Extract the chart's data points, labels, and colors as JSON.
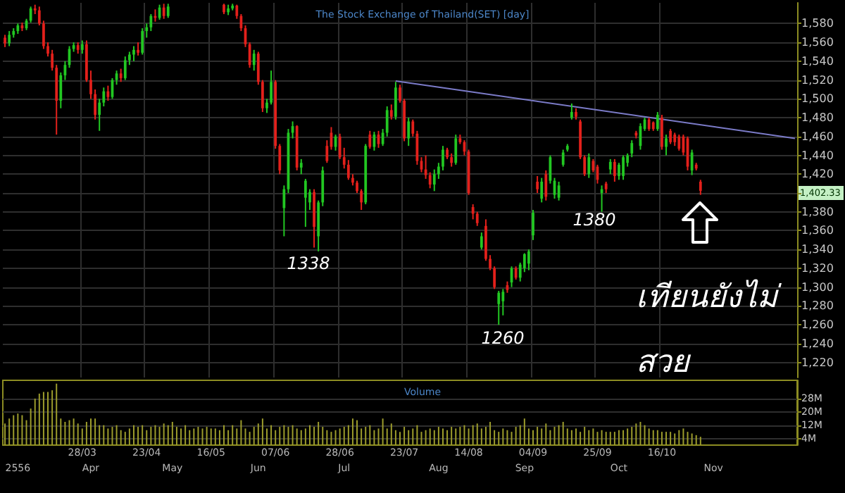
{
  "chart_data": [
    {
      "type": "candlestick",
      "title": "The Stock Exchange of Thailand(SET) [day]",
      "categories": [
        null,
        null,
        null,
        null,
        null,
        null,
        null,
        null,
        null,
        null,
        null,
        null,
        null,
        null,
        null,
        null,
        null,
        null,
        "28/03",
        null,
        null,
        null,
        null,
        null,
        null,
        null,
        null,
        null,
        null,
        null,
        null,
        null,
        null,
        "23/04",
        null,
        null,
        null,
        null,
        null,
        null,
        null,
        null,
        null,
        null,
        null,
        null,
        null,
        null,
        "16/05",
        null,
        null,
        null,
        null,
        null,
        null,
        null,
        null,
        null,
        null,
        null,
        null,
        null,
        null,
        "07/06",
        null,
        null,
        null,
        null,
        null,
        null,
        null,
        null,
        null,
        null,
        null,
        null,
        null,
        null,
        "28/06",
        null,
        null,
        null,
        null,
        null,
        null,
        null,
        null,
        null,
        null,
        null,
        null,
        null,
        null,
        "23/07",
        null,
        null,
        null,
        null,
        null,
        null,
        null,
        null,
        null,
        null,
        null,
        null,
        null,
        null,
        "14/08",
        null,
        null,
        null,
        null,
        null,
        null,
        null,
        null,
        null,
        null,
        null,
        null,
        null,
        null,
        "04/09",
        null,
        null,
        null,
        null,
        null,
        null,
        null,
        null,
        null,
        null,
        null,
        null,
        null,
        null,
        "25/09",
        null,
        null,
        null,
        null,
        null,
        null,
        null,
        null,
        null,
        null,
        null,
        null,
        null,
        null,
        "16/10",
        null,
        null,
        null,
        null,
        null,
        null,
        null,
        null,
        null,
        null,
        null,
        null,
        null,
        null,
        null,
        null,
        null,
        null,
        null,
        null,
        null,
        null,
        null,
        null,
        null,
        null,
        null,
        null,
        null,
        null,
        null
      ],
      "ohlc": [
        [
          1565,
          1568,
          1555,
          1559
        ],
        [
          1559,
          1572,
          1556,
          1568
        ],
        [
          1568,
          1575,
          1565,
          1572
        ],
        [
          1572,
          1580,
          1569,
          1578
        ],
        [
          1578,
          1581,
          1572,
          1575
        ],
        [
          1575,
          1585,
          1573,
          1583
        ],
        [
          1583,
          1598,
          1581,
          1596
        ],
        [
          1596,
          1600,
          1590,
          1594
        ],
        [
          1594,
          1598,
          1578,
          1580
        ],
        [
          1580,
          1583,
          1553,
          1556
        ],
        [
          1556,
          1560,
          1545,
          1548
        ],
        [
          1548,
          1552,
          1530,
          1533
        ],
        [
          1533,
          1536,
          1462,
          1498
        ],
        [
          1498,
          1528,
          1490,
          1525
        ],
        [
          1525,
          1540,
          1520,
          1536
        ],
        [
          1536,
          1556,
          1533,
          1553
        ],
        [
          1553,
          1560,
          1550,
          1557
        ],
        [
          1557,
          1560,
          1548,
          1552
        ],
        [
          1552,
          1562,
          1548,
          1558
        ],
        [
          1558,
          1562,
          1518,
          1520
        ],
        [
          1520,
          1530,
          1500,
          1505
        ],
        [
          1505,
          1510,
          1478,
          1483
        ],
        [
          1483,
          1500,
          1466,
          1496
        ],
        [
          1496,
          1512,
          1492,
          1508
        ],
        [
          1508,
          1514,
          1498,
          1502
        ],
        [
          1502,
          1522,
          1500,
          1520
        ],
        [
          1520,
          1530,
          1515,
          1527
        ],
        [
          1527,
          1532,
          1518,
          1522
        ],
        [
          1522,
          1545,
          1520,
          1541
        ],
        [
          1541,
          1550,
          1536,
          1547
        ],
        [
          1547,
          1556,
          1540,
          1552
        ],
        [
          1552,
          1560,
          1546,
          1549
        ],
        [
          1549,
          1575,
          1547,
          1572
        ],
        [
          1572,
          1580,
          1565,
          1576
        ],
        [
          1576,
          1590,
          1572,
          1588
        ],
        [
          1588,
          1595,
          1582,
          1586
        ],
        [
          1586,
          1600,
          1584,
          1597
        ],
        [
          1597,
          1601,
          1585,
          1588
        ],
        [
          1588,
          1601,
          1586,
          1598
        ],
        null,
        null,
        null,
        null,
        null,
        null,
        null,
        null,
        null,
        null,
        null,
        null,
        [
          1600,
          1601,
          1590,
          1592
        ],
        [
          1592,
          1600,
          1589,
          1596
        ],
        [
          1596,
          1601,
          1594,
          1599
        ],
        [
          1599,
          1600,
          1585,
          1588
        ],
        [
          1588,
          1590,
          1572,
          1575
        ],
        [
          1575,
          1578,
          1555,
          1558
        ],
        [
          1558,
          1560,
          1533,
          1536
        ],
        [
          1536,
          1552,
          1530,
          1548
        ],
        [
          1548,
          1550,
          1515,
          1518
        ],
        [
          1518,
          1520,
          1486,
          1490
        ],
        [
          1490,
          1500,
          1485,
          1496
        ],
        [
          1496,
          1530,
          1494,
          1518
        ],
        [
          1518,
          1520,
          1447,
          1450
        ],
        [
          1450,
          1452,
          1420,
          1424
        ],
        [
          1384,
          1408,
          1354,
          1404
        ],
        [
          1404,
          1468,
          1400,
          1464
        ],
        [
          1464,
          1476,
          1458,
          1471
        ],
        [
          1471,
          1472,
          1424,
          1427
        ],
        [
          1427,
          1436,
          1420,
          1432
        ],
        [
          1395,
          1415,
          1364,
          1413
        ],
        [
          1390,
          1404,
          1382,
          1401
        ],
        [
          1401,
          1404,
          1342,
          1364
        ],
        [
          1354,
          1392,
          1338,
          1390
        ],
        [
          1390,
          1428,
          1386,
          1424
        ],
        [
          1450,
          1456,
          1432,
          1434
        ],
        [
          1464,
          1470,
          1446,
          1449
        ],
        [
          1449,
          1462,
          1445,
          1460
        ],
        [
          1460,
          1463,
          1436,
          1438
        ],
        [
          1438,
          1448,
          1426,
          1430
        ],
        [
          1430,
          1435,
          1414,
          1416
        ],
        [
          1416,
          1420,
          1408,
          1411
        ],
        [
          1411,
          1413,
          1400,
          1402
        ],
        [
          1402,
          1404,
          1382,
          1390
        ],
        [
          1390,
          1452,
          1388,
          1450
        ],
        [
          1462,
          1466,
          1447,
          1449
        ],
        [
          1449,
          1465,
          1445,
          1462
        ],
        [
          1462,
          1466,
          1448,
          1452
        ],
        [
          1452,
          1468,
          1450,
          1464
        ],
        [
          1464,
          1492,
          1460,
          1488
        ],
        [
          1488,
          1494,
          1478,
          1481
        ],
        [
          1481,
          1518,
          1478,
          1512
        ],
        [
          1512,
          1515,
          1496,
          1498
        ],
        [
          1498,
          1500,
          1455,
          1458
        ],
        [
          1458,
          1480,
          1450,
          1476
        ],
        [
          1476,
          1478,
          1460,
          1463
        ],
        [
          1463,
          1466,
          1430,
          1434
        ],
        [
          1434,
          1438,
          1422,
          1425
        ],
        [
          1425,
          1440,
          1415,
          1419
        ],
        [
          1419,
          1422,
          1405,
          1409
        ],
        [
          1409,
          1425,
          1402,
          1420
        ],
        [
          1420,
          1432,
          1415,
          1428
        ],
        [
          1428,
          1450,
          1424,
          1446
        ],
        [
          1446,
          1448,
          1436,
          1438
        ],
        [
          1438,
          1442,
          1428,
          1432
        ],
        [
          1432,
          1462,
          1430,
          1458
        ],
        [
          1458,
          1462,
          1452,
          1454
        ],
        [
          1454,
          1456,
          1440,
          1444
        ],
        [
          1444,
          1446,
          1398,
          1400
        ],
        [
          1385,
          1388,
          1372,
          1378
        ],
        [
          1378,
          1380,
          1365,
          1368
        ],
        [
          1342,
          1358,
          1340,
          1354
        ],
        [
          1365,
          1372,
          1328,
          1330
        ],
        [
          1330,
          1334,
          1318,
          1320
        ],
        [
          1320,
          1322,
          1298,
          1300
        ],
        [
          1282,
          1296,
          1260,
          1294
        ],
        [
          1285,
          1298,
          1270,
          1295
        ],
        [
          1302,
          1306,
          1294,
          1297
        ],
        [
          1305,
          1322,
          1300,
          1320
        ],
        [
          1320,
          1322,
          1308,
          1310
        ],
        [
          1310,
          1326,
          1306,
          1324
        ],
        [
          1320,
          1336,
          1316,
          1335
        ],
        [
          1325,
          1340,
          1318,
          1338
        ],
        [
          1355,
          1382,
          1350,
          1379
        ],
        [
          1412,
          1418,
          1400,
          1404
        ],
        [
          1394,
          1416,
          1390,
          1412
        ],
        [
          1420,
          1424,
          1392,
          1396
        ],
        [
          1413,
          1440,
          1410,
          1438
        ],
        [
          1398,
          1416,
          1394,
          1413
        ],
        [
          1395,
          1412,
          1392,
          1408
        ],
        [
          1430,
          1446,
          1428,
          1443
        ],
        [
          1446,
          1452,
          1444,
          1450
        ],
        [
          1480,
          1495,
          1478,
          1486
        ],
        [
          1486,
          1490,
          1478,
          1481
        ],
        [
          1476,
          1478,
          1436,
          1438
        ],
        [
          1438,
          1440,
          1418,
          1420
        ],
        [
          1420,
          1442,
          1416,
          1438
        ],
        [
          1434,
          1436,
          1422,
          1424
        ],
        [
          1428,
          1430,
          1410,
          1414
        ],
        [
          1400,
          1408,
          1380,
          1404
        ],
        [
          1410,
          1412,
          1400,
          1404
        ],
        [
          1425,
          1436,
          1420,
          1433
        ],
        [
          1433,
          1436,
          1412,
          1418
        ],
        [
          1418,
          1432,
          1414,
          1430
        ],
        [
          1418,
          1440,
          1414,
          1438
        ],
        [
          1432,
          1442,
          1428,
          1440
        ],
        [
          1442,
          1456,
          1438,
          1453
        ],
        [
          1464,
          1466,
          1458,
          1461
        ],
        [
          1450,
          1474,
          1446,
          1471
        ],
        [
          1468,
          1480,
          1466,
          1478
        ],
        [
          1478,
          1480,
          1466,
          1468
        ],
        [
          1475,
          1476,
          1466,
          1468
        ],
        [
          1468,
          1486,
          1466,
          1483
        ],
        [
          1480,
          1483,
          1446,
          1449
        ],
        [
          1449,
          1462,
          1440,
          1458
        ],
        [
          1466,
          1468,
          1452,
          1454
        ],
        [
          1462,
          1464,
          1450,
          1454
        ],
        [
          1460,
          1462,
          1445,
          1447
        ],
        [
          1460,
          1462,
          1440,
          1443
        ],
        [
          1458,
          1460,
          1424,
          1428
        ],
        [
          1424,
          1446,
          1419,
          1443
        ],
        [
          1430,
          1432,
          1424,
          1426
        ],
        [
          1412,
          1414,
          1398,
          1402.33
        ],
        null,
        null,
        null,
        null,
        null,
        null,
        null,
        null,
        null,
        null,
        null,
        null,
        null,
        null,
        null,
        null,
        null,
        null,
        null,
        null,
        null,
        null
      ],
      "colors": [
        "#e3201b",
        "#22c722",
        "#22c722",
        "#22c722",
        "#e3201b",
        "#22c722",
        "#22c722",
        "#e3201b",
        "#e3201b",
        "#e3201b",
        "#e3201b",
        "#e3201b",
        "#e3201b",
        "#22c722",
        "#22c722",
        "#22c722",
        "#22c722",
        "#e3201b",
        "#22c722",
        "#e3201b",
        "#e3201b",
        "#e3201b",
        "#22c722",
        "#22c722",
        "#e3201b",
        "#22c722",
        "#22c722",
        "#e3201b",
        "#22c722",
        "#22c722",
        "#22c722",
        "#e3201b",
        "#22c722",
        "#22c722",
        "#22c722",
        "#e3201b",
        "#22c722",
        "#e3201b",
        "#22c722",
        null,
        null,
        null,
        null,
        null,
        null,
        null,
        null,
        null,
        null,
        null,
        null,
        "#e3201b",
        "#22c722",
        "#22c722",
        "#e3201b",
        "#e3201b",
        "#e3201b",
        "#e3201b",
        "#22c722",
        "#e3201b",
        "#e3201b",
        "#22c722",
        "#22c722",
        "#e3201b",
        "#e3201b",
        "#22c722",
        "#22c722",
        "#22c722",
        "#e3201b",
        "#22c722",
        "#22c722",
        "#22c722",
        "#e3201b",
        "#22c722",
        "#22c722",
        "#e3201b",
        "#e3201b",
        "#22c722",
        "#e3201b",
        "#e3201b",
        "#e3201b",
        "#e3201b",
        "#e3201b",
        "#e3201b",
        "#22c722",
        "#e3201b",
        "#22c722",
        "#e3201b",
        "#22c722",
        "#22c722",
        "#e3201b",
        "#22c722",
        "#e3201b",
        "#e3201b",
        "#22c722",
        "#e3201b",
        "#e3201b",
        "#e3201b",
        "#e3201b",
        "#e3201b",
        "#22c722",
        "#22c722",
        "#22c722",
        "#e3201b",
        "#e3201b",
        "#22c722",
        "#e3201b",
        "#e3201b",
        "#e3201b",
        "#e3201b",
        "#e3201b",
        "#22c722",
        "#e3201b",
        "#e3201b",
        "#e3201b",
        "#22c722",
        "#22c722",
        "#e3201b",
        "#22c722",
        "#e3201b",
        "#22c722",
        "#22c722",
        "#22c722",
        "#22c722",
        "#e3201b",
        "#22c722",
        "#e3201b",
        "#22c722",
        "#22c722",
        "#22c722",
        "#22c722",
        "#22c722",
        "#22c722",
        "#e3201b",
        "#e3201b",
        "#e3201b",
        "#22c722",
        "#e3201b",
        "#e3201b",
        "#22c722",
        "#e3201b",
        "#22c722",
        "#e3201b",
        "#22c722",
        "#22c722",
        "#22c722",
        "#22c722",
        "#e3201b",
        "#22c722",
        "#22c722",
        "#e3201b",
        "#e3201b",
        "#22c722",
        "#e3201b",
        "#22c722",
        "#e3201b",
        "#e3201b",
        "#e3201b",
        "#e3201b",
        "#e3201b",
        "#22c722",
        "#e3201b",
        "#e3201b",
        null,
        null,
        null,
        null,
        null,
        null,
        null,
        null,
        null,
        null,
        null,
        null,
        null,
        null,
        null,
        null,
        null,
        null,
        null,
        null,
        null,
        null
      ],
      "series": [
        {
          "type": "line",
          "color": "#7b7bc8",
          "values": [
            null,
            null,
            null,
            null,
            null,
            null,
            null,
            null,
            null,
            null,
            null,
            null,
            null,
            null,
            null,
            null,
            null,
            null,
            null,
            null,
            null,
            null,
            null,
            null,
            null,
            null,
            null,
            null,
            null,
            null,
            null,
            null,
            null,
            null,
            null,
            null,
            null,
            null,
            null,
            null,
            null,
            null,
            null,
            null,
            null,
            null,
            null,
            null,
            null,
            null,
            null,
            null,
            null,
            null,
            null,
            null,
            null,
            null,
            null,
            null,
            null,
            null,
            null,
            null,
            null,
            null,
            null,
            null,
            null,
            null,
            null,
            null,
            null,
            null,
            null,
            null,
            null,
            null,
            null,
            null,
            null,
            null,
            null,
            null,
            null,
            null,
            null,
            null,
            null,
            null,
            null,
            1519,
            null,
            null,
            null,
            null,
            null,
            null,
            null,
            null,
            null,
            null,
            null,
            null,
            null,
            null,
            null,
            null,
            null,
            null,
            null,
            null,
            null,
            null,
            null,
            null,
            null,
            null,
            null,
            null,
            null,
            null,
            null,
            null,
            null,
            null,
            null,
            null,
            null,
            null,
            null,
            null,
            null,
            null,
            null,
            null,
            null,
            null,
            null,
            null,
            null,
            null,
            null,
            null,
            null,
            null,
            null,
            null,
            null,
            null,
            null,
            null,
            null,
            null,
            null,
            null,
            null,
            null,
            null,
            null,
            null,
            null,
            null,
            null,
            null,
            null,
            null,
            null,
            null,
            null,
            null,
            null,
            null,
            null,
            null,
            null,
            null,
            null,
            null,
            null,
            null,
            null,
            null,
            null,
            1458
          ]
        }
      ],
      "ylim": [
        1204,
        1602
      ],
      "yticks": [
        {
          "value": 1220,
          "label": "1,220"
        },
        {
          "value": 1240,
          "label": "1,240"
        },
        {
          "value": 1260,
          "label": "1,260"
        },
        {
          "value": 1280,
          "label": "1,280"
        },
        {
          "value": 1300,
          "label": "1,300"
        },
        {
          "value": 1320,
          "label": "1,320"
        },
        {
          "value": 1340,
          "label": "1,340"
        },
        {
          "value": 1360,
          "label": "1,360"
        },
        {
          "value": 1380,
          "label": "1,380"
        },
        {
          "value": 1400,
          "label": null
        },
        {
          "value": 1420,
          "label": "1,420"
        },
        {
          "value": 1440,
          "label": "1,440"
        },
        {
          "value": 1460,
          "label": "1,460"
        },
        {
          "value": 1480,
          "label": "1,480"
        },
        {
          "value": 1500,
          "label": "1,500"
        },
        {
          "value": 1520,
          "label": "1,520"
        },
        {
          "value": 1540,
          "label": "1,540"
        },
        {
          "value": 1560,
          "label": "1,560"
        },
        {
          "value": 1580,
          "label": "1,580"
        }
      ],
      "grid": true,
      "annotations": [
        "1338",
        "1260",
        "1380",
        "1,402.33",
        "เทียนยังไม่\nสวย"
      ]
    },
    {
      "type": "bar",
      "title": "Volume",
      "categories": [
        null,
        null,
        null,
        "2556",
        null,
        null,
        null,
        null,
        null,
        null,
        null,
        null,
        null,
        null,
        null,
        null,
        null,
        null,
        null,
        null,
        "Apr",
        null,
        null,
        null,
        null,
        null,
        null,
        null,
        null,
        null,
        null,
        null,
        null,
        null,
        null,
        null,
        null,
        null,
        null,
        "May",
        null,
        null,
        null,
        null,
        null,
        null,
        null,
        null,
        null,
        null,
        null,
        null,
        null,
        null,
        null,
        null,
        null,
        null,
        null,
        "Jun",
        null,
        null,
        null,
        null,
        null,
        null,
        null,
        null,
        null,
        null,
        null,
        null,
        null,
        null,
        null,
        null,
        null,
        null,
        null,
        "Jul",
        null,
        null,
        null,
        null,
        null,
        null,
        null,
        null,
        null,
        null,
        null,
        null,
        null,
        null,
        null,
        null,
        null,
        null,
        null,
        null,
        null,
        "Aug",
        null,
        null,
        null,
        null,
        null,
        null,
        null,
        null,
        null,
        null,
        null,
        null,
        null,
        null,
        null,
        null,
        null,
        null,
        null,
        "Sep",
        null,
        null,
        null,
        null,
        null,
        null,
        null,
        null,
        null,
        null,
        null,
        null,
        null,
        null,
        null,
        null,
        null,
        null,
        null,
        null,
        null,
        "Oct",
        null,
        null,
        null,
        null,
        null,
        null,
        null,
        null,
        null,
        null,
        null,
        null,
        null,
        null,
        null,
        null,
        null,
        null,
        null,
        null,
        null,
        "Nov",
        null,
        null,
        null,
        null,
        null,
        null,
        null,
        null,
        null,
        null,
        null,
        null,
        null,
        null,
        null,
        null,
        null,
        null,
        null
      ],
      "values": [
        13,
        16,
        18,
        19,
        18,
        15,
        22,
        28,
        31,
        32,
        32,
        33,
        37,
        16,
        14,
        15,
        16,
        13,
        10,
        14,
        16,
        16,
        12,
        12,
        10,
        11,
        12,
        9,
        8,
        10,
        12,
        11,
        12,
        9,
        11,
        12,
        11,
        13,
        12,
        14,
        11,
        10,
        12,
        9,
        10,
        11,
        10,
        11,
        10,
        10,
        9,
        12,
        9,
        12,
        10,
        15,
        10,
        8,
        11,
        13,
        16,
        10,
        12,
        9,
        11,
        12,
        11,
        12,
        10,
        9,
        10,
        12,
        11,
        14,
        11,
        9,
        8,
        9,
        10,
        11,
        12,
        16,
        15,
        10,
        11,
        12,
        9,
        10,
        16,
        10,
        13,
        9,
        8,
        11,
        9,
        10,
        12,
        8,
        9,
        10,
        9,
        11,
        10,
        9,
        11,
        10,
        11,
        12,
        10,
        12,
        13,
        10,
        11,
        14,
        9,
        8,
        10,
        9,
        8,
        11,
        12,
        16,
        10,
        9,
        11,
        10,
        13,
        9,
        11,
        12,
        14,
        10,
        9,
        10,
        8,
        11,
        9,
        10,
        8,
        9,
        8,
        8,
        8,
        9,
        9,
        10,
        11,
        13,
        14,
        12,
        10,
        9,
        9,
        8,
        8,
        8,
        7,
        9,
        10,
        8,
        7,
        6,
        5,
        null,
        null,
        null,
        null,
        null,
        null,
        null,
        null,
        null,
        null,
        null,
        null,
        null,
        null,
        null,
        null,
        null,
        null,
        null,
        null,
        null,
        null
      ],
      "color": "#9c9c2c",
      "ylim": [
        0,
        39
      ],
      "yticks": [
        {
          "value": 4,
          "label": "4M"
        },
        {
          "value": 12,
          "label": "12M"
        },
        {
          "value": 20,
          "label": "20M"
        },
        {
          "value": 28,
          "label": "28M"
        }
      ],
      "grid": "y"
    }
  ]
}
